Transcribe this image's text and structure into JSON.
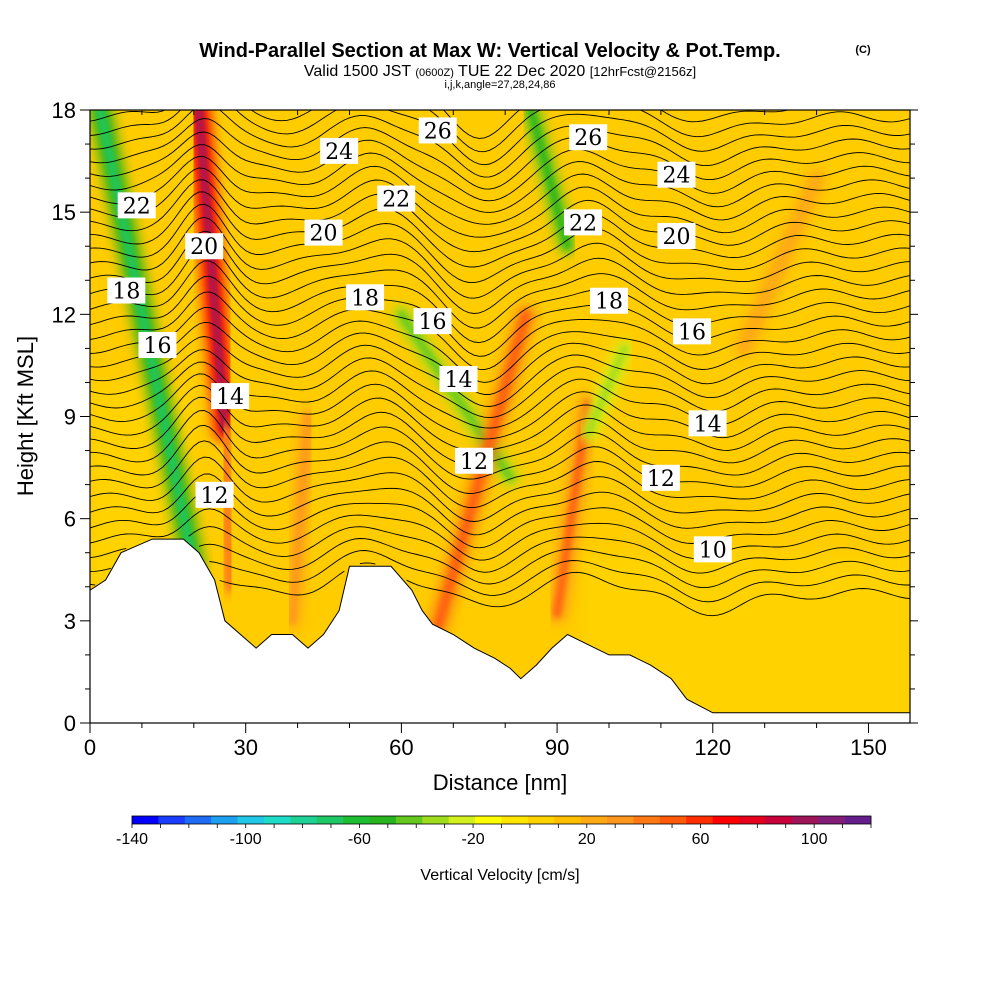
{
  "chart_data": {
    "type": "heatmap",
    "title": "Wind-Parallel Section at Max W: Vertical Velocity & Pot.Temp.",
    "title_mark": "(C)",
    "subtitle_parts": {
      "valid": "Valid 1500 JST",
      "utc": "(0600Z)",
      "date": "TUE 22 Dec 2020",
      "fcst": "[12hrFcst@2156z]"
    },
    "subtitle2": "i,j,k,angle=27,28,24,86",
    "xlabel": "Distance [nm]",
    "ylabel": "Height [Kft MSL]",
    "xlim": [
      0,
      158
    ],
    "ylim": [
      0,
      18
    ],
    "x_ticks": [
      "0",
      "30",
      "60",
      "90",
      "120",
      "150"
    ],
    "x_tick_values": [
      0,
      30,
      60,
      90,
      120,
      150
    ],
    "y_ticks": [
      "0",
      "3",
      "6",
      "9",
      "12",
      "15",
      "18"
    ],
    "y_tick_values": [
      0,
      3,
      6,
      9,
      12,
      15,
      18
    ],
    "colorbar": {
      "label": "Vertical Velocity [cm/s]",
      "min": -140,
      "max": 120,
      "tick_labels": [
        "-140",
        "-100",
        "-60",
        "-20",
        "20",
        "60",
        "100"
      ],
      "tick_values": [
        -140,
        -100,
        -60,
        -20,
        20,
        60,
        100
      ],
      "colors": [
        "#0000ff",
        "#1a3cff",
        "#1e6cf5",
        "#1ea0f0",
        "#1ec8e6",
        "#1edcc8",
        "#1ed296",
        "#1ec864",
        "#1ebe32",
        "#28b41e",
        "#64c81e",
        "#a0dc1e",
        "#d2f01e",
        "#ffff00",
        "#ffe600",
        "#ffd200",
        "#ffbe00",
        "#ffaa14",
        "#ff961e",
        "#ff7814",
        "#ff5a0a",
        "#ff2d00",
        "#ff0000",
        "#e6001e",
        "#c8003c",
        "#a0145a",
        "#821e78",
        "#641e8c"
      ]
    },
    "terrain": [
      [
        0,
        3.9
      ],
      [
        3,
        4.2
      ],
      [
        6,
        5.0
      ],
      [
        12,
        5.4
      ],
      [
        18,
        5.4
      ],
      [
        21,
        5.0
      ],
      [
        24,
        4.2
      ],
      [
        26,
        3.0
      ],
      [
        29,
        2.6
      ],
      [
        32,
        2.2
      ],
      [
        35,
        2.6
      ],
      [
        39,
        2.6
      ],
      [
        42,
        2.2
      ],
      [
        45,
        2.6
      ],
      [
        48,
        3.3
      ],
      [
        50,
        4.6
      ],
      [
        58,
        4.6
      ],
      [
        62,
        3.9
      ],
      [
        64,
        3.3
      ],
      [
        66,
        2.9
      ],
      [
        70,
        2.6
      ],
      [
        74,
        2.2
      ],
      [
        78,
        1.9
      ],
      [
        81,
        1.6
      ],
      [
        83,
        1.3
      ],
      [
        86,
        1.7
      ],
      [
        89,
        2.2
      ],
      [
        92,
        2.6
      ],
      [
        96,
        2.3
      ],
      [
        100,
        2.0
      ],
      [
        104,
        2.0
      ],
      [
        108,
        1.7
      ],
      [
        112,
        1.3
      ],
      [
        115,
        0.7
      ],
      [
        120,
        0.3
      ],
      [
        158,
        0.3
      ]
    ],
    "contours": [
      {
        "label": "10",
        "level": 10,
        "label_x": 120,
        "label_y": 5.1
      },
      {
        "label": "12",
        "level": 12,
        "label_x": 110,
        "label_y": 7.2
      },
      {
        "label": "12",
        "level": 12,
        "label_x": 24,
        "label_y": 6.7
      },
      {
        "label": "12",
        "level": 12,
        "label_x": 74,
        "label_y": 7.7
      },
      {
        "label": "14",
        "level": 14,
        "label_x": 119,
        "label_y": 8.8
      },
      {
        "label": "14",
        "level": 14,
        "label_x": 27,
        "label_y": 9.6
      },
      {
        "label": "14",
        "level": 14,
        "label_x": 71,
        "label_y": 10.1
      },
      {
        "label": "16",
        "level": 16,
        "label_x": 13,
        "label_y": 11.1
      },
      {
        "label": "16",
        "level": 16,
        "label_x": 66,
        "label_y": 11.8
      },
      {
        "label": "16",
        "level": 16,
        "label_x": 116,
        "label_y": 11.5
      },
      {
        "label": "18",
        "level": 18,
        "label_x": 7,
        "label_y": 12.7
      },
      {
        "label": "18",
        "level": 18,
        "label_x": 53,
        "label_y": 12.5
      },
      {
        "label": "18",
        "level": 18,
        "label_x": 100,
        "label_y": 12.4
      },
      {
        "label": "20",
        "level": 20,
        "label_x": 22,
        "label_y": 14.0
      },
      {
        "label": "20",
        "level": 20,
        "label_x": 45,
        "label_y": 14.4
      },
      {
        "label": "20",
        "level": 20,
        "label_x": 113,
        "label_y": 14.3
      },
      {
        "label": "22",
        "level": 22,
        "label_x": 9,
        "label_y": 15.2
      },
      {
        "label": "22",
        "level": 22,
        "label_x": 59,
        "label_y": 15.4
      },
      {
        "label": "22",
        "level": 22,
        "label_x": 95,
        "label_y": 14.7
      },
      {
        "label": "24",
        "level": 24,
        "label_x": 48,
        "label_y": 16.8
      },
      {
        "label": "24",
        "level": 24,
        "label_x": 113,
        "label_y": 16.1
      },
      {
        "label": "26",
        "level": 26,
        "label_x": 67,
        "label_y": 17.4
      },
      {
        "label": "26",
        "level": 26,
        "label_x": 96,
        "label_y": 17.2
      }
    ],
    "updraft_bands": [
      {
        "kind": "down",
        "x0": 20,
        "y0": 4.6,
        "x1": 2,
        "y1": 18,
        "strength": -55
      },
      {
        "kind": "up",
        "x0": 26,
        "y0": 8.6,
        "x1": 21,
        "y1": 18,
        "strength": 70
      },
      {
        "kind": "up",
        "x0": 27,
        "y0": 4.0,
        "x1": 26,
        "y1": 8.5,
        "strength": 30
      },
      {
        "kind": "down",
        "x0": 81,
        "y0": 7.2,
        "x1": 60,
        "y1": 12,
        "strength": -30
      },
      {
        "kind": "up",
        "x0": 67,
        "y0": 2.8,
        "x1": 84,
        "y1": 12,
        "strength": 40
      },
      {
        "kind": "up",
        "x0": 39,
        "y0": 3.0,
        "x1": 42,
        "y1": 9,
        "strength": 25
      },
      {
        "kind": "down",
        "x0": 92,
        "y0": 14,
        "x1": 85,
        "y1": 18,
        "strength": -40
      },
      {
        "kind": "up",
        "x0": 90,
        "y0": 3.2,
        "x1": 96,
        "y1": 9.4,
        "strength": 35
      },
      {
        "kind": "down",
        "x0": 96,
        "y0": 8.5,
        "x1": 103,
        "y1": 11,
        "strength": -25
      },
      {
        "kind": "up",
        "x0": 126,
        "y0": 11,
        "x1": 140,
        "y1": 16,
        "strength": 20
      }
    ]
  }
}
